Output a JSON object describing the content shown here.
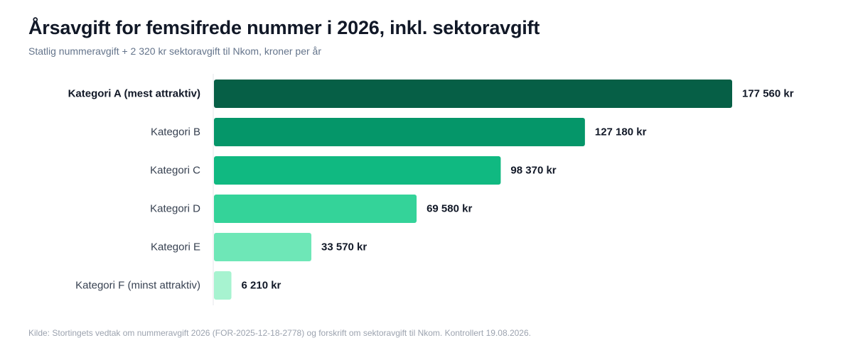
{
  "header": {
    "title": "Årsavgift for femsifrede nummer i 2026, inkl. sektoravgift",
    "subtitle": "Statlig nummeravgift + 2 320 kr sektoravgift til Nkom, kroner per år"
  },
  "chart_data": {
    "type": "bar",
    "orientation": "horizontal",
    "categories": [
      "Kategori A (mest attraktiv)",
      "Kategori B",
      "Kategori C",
      "Kategori D",
      "Kategori E",
      "Kategori F (minst attraktiv)"
    ],
    "values": [
      177560,
      127180,
      98370,
      69580,
      33570,
      6210
    ],
    "value_labels": [
      "177 560 kr",
      "127 180 kr",
      "98 370 kr",
      "69 580 kr",
      "33 570 kr",
      "6 210 kr"
    ],
    "colors": [
      "#065f46",
      "#059669",
      "#10b981",
      "#34d399",
      "#6ee7b7",
      "#a7f3d0"
    ],
    "bold_category": "Kategori A (mest attraktiv)",
    "xlim": [
      0,
      177560
    ],
    "grid": false,
    "legend": "none"
  },
  "footer": {
    "source": "Kilde: Stortingets vedtak om nummeravgift 2026 (FOR-2025-12-18-2778) og forskrift om sektoravgift til Nkom. Kontrollert 19.08.2026."
  }
}
